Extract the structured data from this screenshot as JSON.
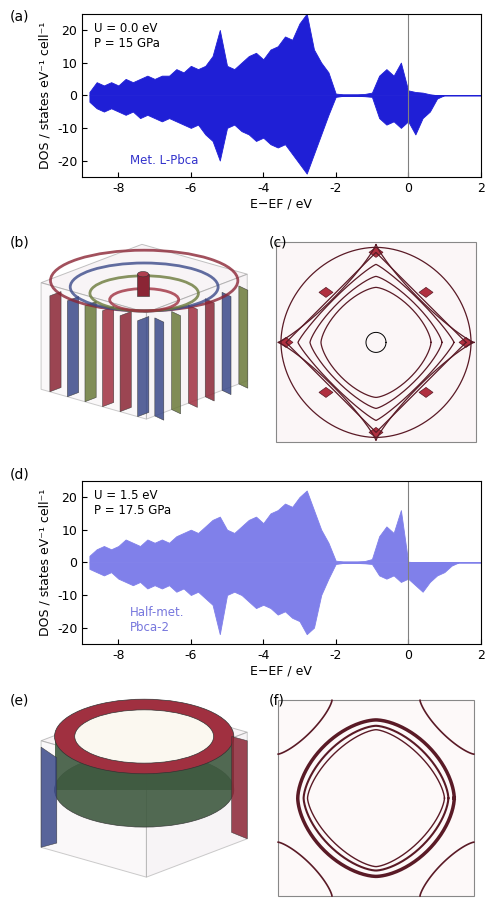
{
  "chart_data": [
    {
      "type": "area",
      "panel_label": "(a)",
      "x_label": "E−EF / eV",
      "y_label": "DOS / states eV⁻¹ cell⁻¹",
      "annotations": [
        "U = 0.0 eV",
        "P = 15 GPa"
      ],
      "label": "Met. L-Pbca",
      "label_color": "#3333cc",
      "x": [
        -8.8,
        -8.6,
        -8.4,
        -8.2,
        -8.0,
        -7.8,
        -7.6,
        -7.4,
        -7.2,
        -7.0,
        -6.8,
        -6.6,
        -6.4,
        -6.2,
        -6.0,
        -5.8,
        -5.6,
        -5.4,
        -5.2,
        -5.0,
        -4.8,
        -4.6,
        -4.4,
        -4.2,
        -4.0,
        -3.8,
        -3.6,
        -3.4,
        -3.2,
        -3.0,
        -2.8,
        -2.6,
        -2.4,
        -2.2,
        -2.0,
        -1.8,
        -1.6,
        -1.4,
        -1.2,
        -1.0,
        -0.8,
        -0.6,
        -0.4,
        -0.2,
        0.0,
        0.2,
        0.4,
        0.6,
        0.8,
        1.0,
        1.2,
        1.4,
        1.6,
        1.8,
        2.0
      ],
      "series": [
        {
          "color": "#1f1fd6",
          "values": [
            1,
            4,
            3,
            4,
            3,
            5,
            4,
            5,
            6,
            5,
            6,
            6,
            8,
            7,
            9,
            8,
            9,
            12,
            20,
            9,
            8,
            10,
            12,
            13,
            11,
            14,
            15,
            18,
            17,
            22,
            25,
            14,
            10,
            7,
            0.5,
            0.3,
            0.3,
            0.3,
            0.4,
            0.8,
            6,
            8,
            6,
            10,
            1.5,
            1.0,
            0.8,
            0.3,
            0,
            0,
            0,
            0,
            0,
            0,
            0
          ]
        },
        {
          "color": "#1f1fd6",
          "values": [
            -2,
            -4,
            -5,
            -4,
            -5,
            -6,
            -5,
            -7,
            -6,
            -7,
            -8,
            -7,
            -8,
            -9,
            -10,
            -9,
            -12,
            -14,
            -20,
            -10,
            -9,
            -11,
            -12,
            -14,
            -13,
            -15,
            -16,
            -15,
            -18,
            -21,
            -24,
            -18,
            -12,
            -6,
            -0.5,
            -0.2,
            -0.2,
            -0.2,
            -0.3,
            -0.5,
            -7,
            -9,
            -8,
            -10,
            -8,
            -12,
            -7,
            -5,
            -1,
            0,
            0,
            0,
            0,
            0,
            0
          ]
        }
      ],
      "vlines": [
        0
      ],
      "xlim": [
        -9,
        2
      ],
      "xticks": [
        -8,
        -6,
        -4,
        -2,
        0,
        2
      ],
      "ylim": [
        -25,
        25
      ],
      "yticks": [
        -20,
        -10,
        0,
        10,
        20
      ]
    },
    {
      "type": "area",
      "panel_label": "(d)",
      "x_label": "E−EF / eV",
      "y_label": "DOS / states eV⁻¹ cell⁻¹",
      "annotations": [
        "U = 1.5 eV",
        "P = 17.5 GPa"
      ],
      "label": "Half-met.\nPbca-2",
      "label_color": "#7777dd",
      "x": [
        -8.8,
        -8.6,
        -8.4,
        -8.2,
        -8.0,
        -7.8,
        -7.6,
        -7.4,
        -7.2,
        -7.0,
        -6.8,
        -6.6,
        -6.4,
        -6.2,
        -6.0,
        -5.8,
        -5.6,
        -5.4,
        -5.2,
        -5.0,
        -4.8,
        -4.6,
        -4.4,
        -4.2,
        -4.0,
        -3.8,
        -3.6,
        -3.4,
        -3.2,
        -3.0,
        -2.8,
        -2.6,
        -2.4,
        -2.2,
        -2.0,
        -1.8,
        -1.6,
        -1.4,
        -1.2,
        -1.0,
        -0.8,
        -0.6,
        -0.4,
        -0.2,
        0.0,
        0.2,
        0.4,
        0.6,
        0.8,
        1.0,
        1.2,
        1.4,
        1.6,
        1.8,
        2.0
      ],
      "series": [
        {
          "color": "#8080ea",
          "values": [
            2,
            4,
            5,
            4,
            5,
            7,
            6,
            5,
            7,
            6,
            7,
            6,
            8,
            9,
            10,
            9,
            11,
            13,
            14,
            10,
            9,
            11,
            13,
            14,
            12,
            15,
            16,
            18,
            17,
            20,
            22,
            16,
            10,
            6,
            0.5,
            0.3,
            0.3,
            0.3,
            0.4,
            1,
            8,
            11,
            9,
            16,
            0.2,
            0,
            0,
            0,
            0,
            0,
            0,
            0,
            0,
            0,
            0
          ]
        },
        {
          "color": "#8080ea",
          "values": [
            -2,
            -3,
            -4,
            -3,
            -5,
            -6,
            -7,
            -6,
            -8,
            -7,
            -8,
            -7,
            -9,
            -8,
            -10,
            -9,
            -11,
            -13,
            -22,
            -10,
            -9,
            -10,
            -12,
            -14,
            -13,
            -14,
            -16,
            -15,
            -17,
            -18,
            -22,
            -20,
            -10,
            -5,
            -0.5,
            -0.2,
            -0.2,
            -0.2,
            -0.3,
            -0.5,
            -4,
            -5,
            -4,
            -6,
            -5,
            -7,
            -9,
            -6,
            -4,
            -3,
            -1,
            0,
            0,
            0,
            0
          ]
        }
      ],
      "vlines": [
        0
      ],
      "xlim": [
        -9,
        2
      ],
      "xticks": [
        -8,
        -6,
        -4,
        -2,
        0,
        2
      ],
      "ylim": [
        -25,
        25
      ],
      "yticks": [
        -20,
        -10,
        0,
        10,
        20
      ]
    }
  ],
  "fermi_surface_panels": [
    "(b)",
    "(c)",
    "(e)",
    "(f)"
  ]
}
